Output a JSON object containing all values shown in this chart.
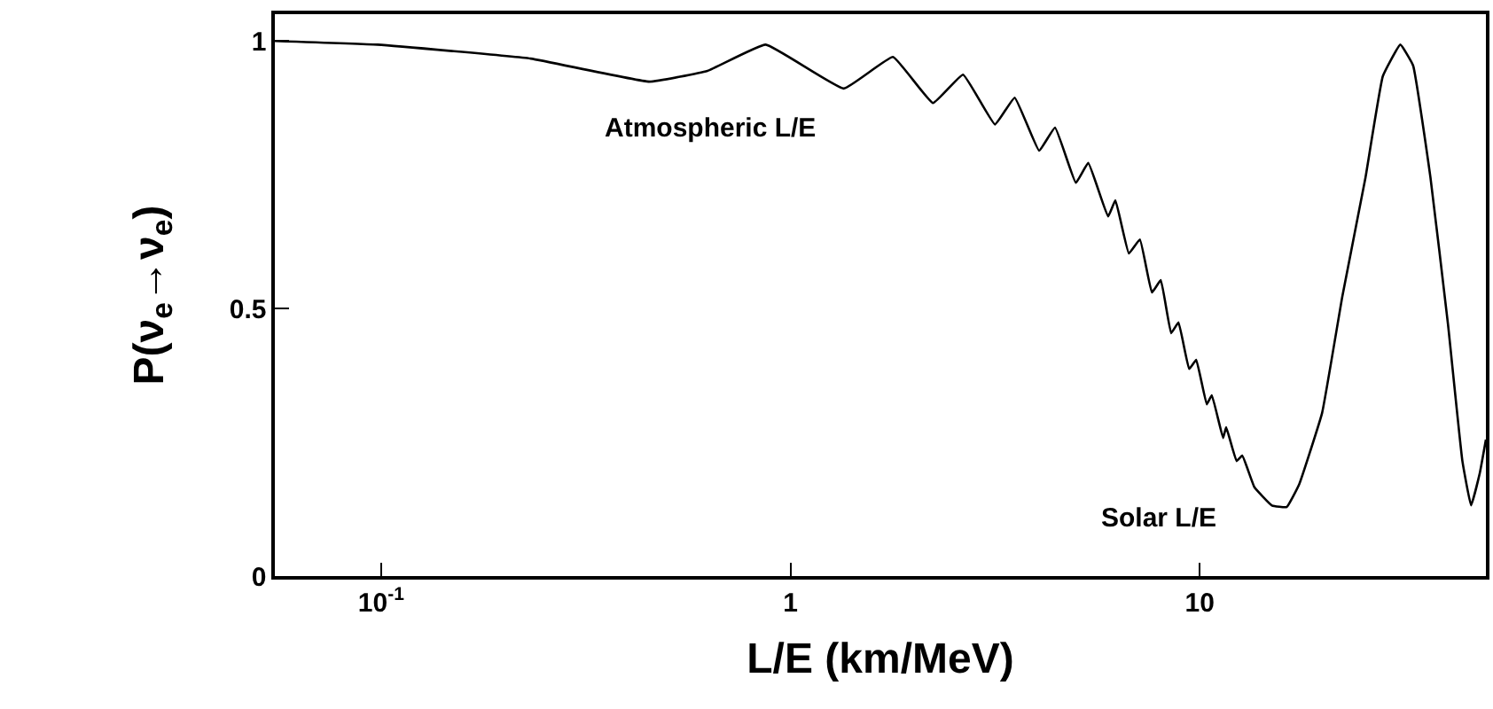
{
  "chart_data": {
    "type": "line",
    "xlabel": "L/E (km/MeV)",
    "ylabel": "P(ν$_{e}$→ν$_{e}$)",
    "log": "x",
    "marker": "none",
    "line_style": "solid",
    "xlim": [
      0.055,
      50
    ],
    "ylim": [
      0,
      1.05
    ],
    "xticks": [
      {
        "value": 0.1,
        "label": "10$^{-1}$"
      },
      1,
      10
    ],
    "yticks": [
      0,
      0.5,
      1
    ],
    "annotations": [
      "Atmospheric L/E",
      "Solar L/E"
    ],
    "x": [
      0.055,
      0.098,
      0.232,
      0.452,
      0.627,
      0.87,
      1.35,
      1.78,
      2.23,
      2.64,
      3.16,
      3.53,
      4.05,
      4.43,
      4.98,
      5.34,
      5.97,
      6.22,
      6.71,
      7.14,
      7.64,
      8.03,
      8.51,
      8.87,
      9.42,
      9.8,
      10.4,
      10.7,
      11.4,
      11.6,
      12.3,
      12.7,
      13.6,
      15.0,
      16.3,
      17.5,
      19.9,
      22.3,
      25.4,
      28.0,
      30.9,
      33.2,
      36.6,
      40.4,
      43.8,
      46.0,
      48.3,
      50
    ],
    "series": [
      {
        "color": "#000000",
        "values": [
          1.0,
          0.993,
          0.967,
          0.924,
          0.944,
          0.993,
          0.911,
          0.97,
          0.884,
          0.937,
          0.844,
          0.894,
          0.795,
          0.838,
          0.735,
          0.772,
          0.672,
          0.702,
          0.603,
          0.629,
          0.53,
          0.553,
          0.454,
          0.474,
          0.387,
          0.404,
          0.321,
          0.338,
          0.258,
          0.278,
          0.215,
          0.225,
          0.166,
          0.132,
          0.129,
          0.172,
          0.305,
          0.523,
          0.745,
          0.934,
          0.993,
          0.954,
          0.745,
          0.47,
          0.215,
          0.132,
          0.192,
          0.255
        ]
      }
    ]
  }
}
